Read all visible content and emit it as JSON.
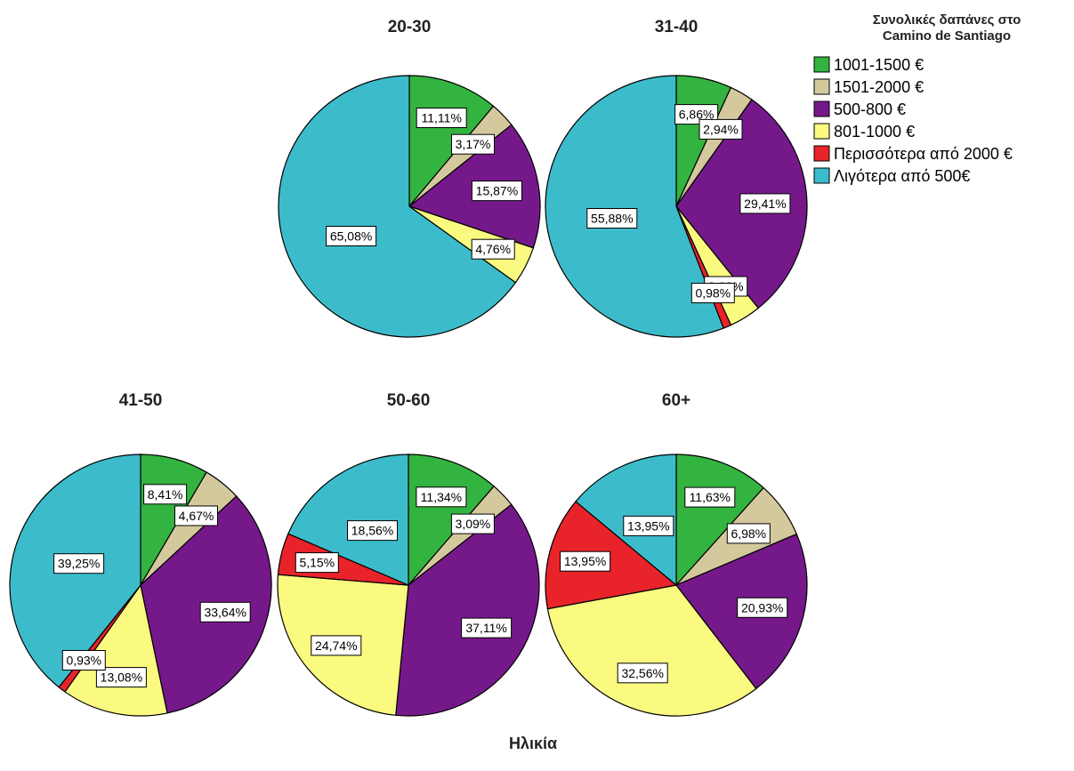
{
  "chart_data": {
    "type": "pie",
    "legend_title_lines": [
      "Συνολικές δαπάνες στο",
      "Camino de Santiago"
    ],
    "xlabel": "Ηλικία",
    "legend_position": "top-right",
    "categories": [
      {
        "name": "1001-1500 €",
        "color": "#33b33f"
      },
      {
        "name": "1501-2000 €",
        "color": "#d3c99d"
      },
      {
        "name": "500-800 €",
        "color": "#75198a"
      },
      {
        "name": "801-1000 €",
        "color": "#fafa80"
      },
      {
        "name": "Περισσότερα από 2000 €",
        "color": "#e8232a"
      },
      {
        "name": "Λιγότερα από 500€",
        "color": "#3cbccb"
      }
    ],
    "pies": [
      {
        "title": "20-30",
        "values": [
          11.11,
          3.17,
          15.87,
          4.76,
          0,
          65.08
        ],
        "labels": [
          "11,11%",
          "3,17%",
          "15,87%",
          "4,76%",
          "",
          "65,08%"
        ]
      },
      {
        "title": "31-40",
        "values": [
          6.86,
          2.94,
          29.41,
          3.92,
          0.98,
          55.88
        ],
        "labels": [
          "6,86%",
          "2,94%",
          "29,41%",
          "3,92%",
          "0,98%",
          "55,88%"
        ]
      },
      {
        "title": "41-50",
        "values": [
          8.41,
          4.67,
          33.64,
          13.08,
          0.93,
          39.25
        ],
        "labels": [
          "8,41%",
          "4,67%",
          "33,64%",
          "13,08%",
          "0,93%",
          "39,25%"
        ]
      },
      {
        "title": "50-60",
        "values": [
          11.34,
          3.09,
          37.11,
          24.74,
          5.15,
          18.56
        ],
        "labels": [
          "11,34%",
          "3,09%",
          "37,11%",
          "24,74%",
          "5,15%",
          "18,56%"
        ]
      },
      {
        "title": "60+",
        "values": [
          11.63,
          6.98,
          20.93,
          32.56,
          13.95,
          13.95
        ],
        "labels": [
          "11,63%",
          "6,98%",
          "20,93%",
          "32,56%",
          "13,95%",
          "13,95%"
        ]
      }
    ]
  }
}
